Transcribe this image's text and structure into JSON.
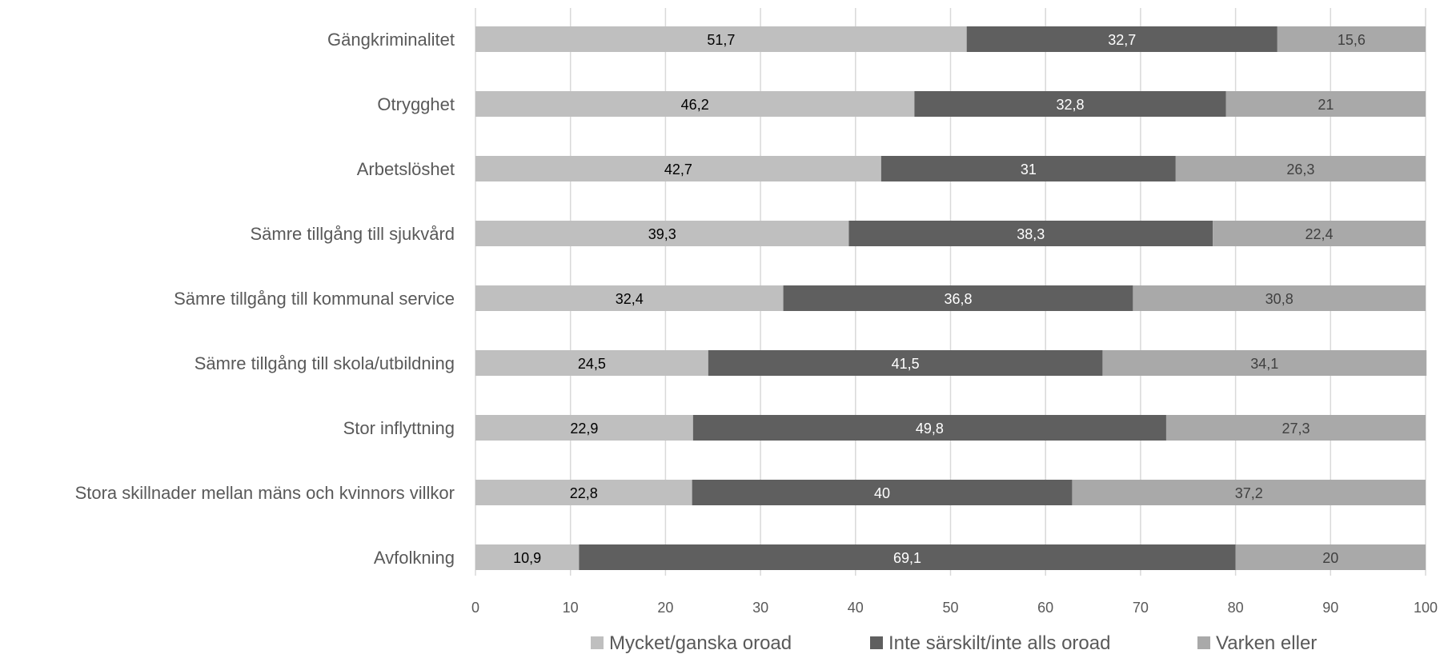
{
  "chart_data": {
    "type": "bar",
    "orientation": "horizontal",
    "stacked": true,
    "categories": [
      "Gängkriminalitet",
      "Otrygghet",
      "Arbetslöshet",
      "Sämre tillgång till sjukvård",
      "Sämre tillgång till kommunal service",
      "Sämre tillgång till skola/utbildning",
      "Stor inflyttning",
      "Stora skillnader mellan mäns och kvinnors villkor",
      "Avfolkning"
    ],
    "series": [
      {
        "name": "Mycket/ganska oroad",
        "color": "#bfbfbf",
        "label_color": "#000000",
        "values": [
          51.7,
          46.2,
          42.7,
          39.3,
          32.4,
          24.5,
          22.9,
          22.8,
          10.9
        ],
        "labels": [
          "51,7",
          "46,2",
          "42,7",
          "39,3",
          "32,4",
          "24,5",
          "22,9",
          "22,8",
          "10,9"
        ]
      },
      {
        "name": "Inte särskilt/inte alls oroad",
        "color": "#5f5f5f",
        "label_color": "#ffffff",
        "values": [
          32.7,
          32.8,
          31,
          38.3,
          36.8,
          41.5,
          49.8,
          40,
          69.1
        ],
        "labels": [
          "32,7",
          "32,8",
          "31",
          "38,3",
          "36,8",
          "41,5",
          "49,8",
          "40",
          "69,1"
        ]
      },
      {
        "name": "Varken eller",
        "color": "#a9a9a9",
        "label_color": "#404040",
        "values": [
          15.6,
          21,
          26.3,
          22.4,
          30.8,
          34.1,
          27.3,
          37.2,
          20
        ],
        "labels": [
          "15,6",
          "21",
          "26,3",
          "22,4",
          "30,8",
          "34,1",
          "27,3",
          "37,2",
          "20"
        ]
      }
    ],
    "xlim": [
      0,
      100
    ],
    "xticks": [
      0,
      10,
      20,
      30,
      40,
      50,
      60,
      70,
      80,
      90,
      100
    ],
    "xtick_labels": [
      "0",
      "10",
      "20",
      "30",
      "40",
      "50",
      "60",
      "70",
      "80",
      "90",
      "100"
    ],
    "grid": true,
    "legend_position": "bottom",
    "title": "",
    "xlabel": "",
    "ylabel": ""
  }
}
